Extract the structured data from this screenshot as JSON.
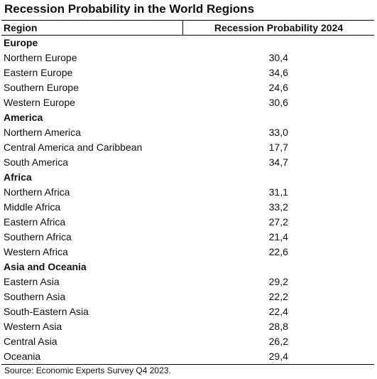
{
  "title": "Recession Probability in the World Regions",
  "table": {
    "headers": {
      "region": "Region",
      "probability": "Recession Probability 2024"
    },
    "rows": [
      {
        "type": "group",
        "label": "Europe",
        "value": ""
      },
      {
        "type": "item",
        "label": "Northern Europe",
        "value": "30,4"
      },
      {
        "type": "item",
        "label": "Eastern Europe",
        "value": "34,6"
      },
      {
        "type": "item",
        "label": "Southern Europe",
        "value": "24,6"
      },
      {
        "type": "item",
        "label": "Western Europe",
        "value": "30,6"
      },
      {
        "type": "group",
        "label": "America",
        "value": ""
      },
      {
        "type": "item",
        "label": "Northern America",
        "value": "33,0"
      },
      {
        "type": "item",
        "label": "Central America and Caribbean",
        "value": "17,7"
      },
      {
        "type": "item",
        "label": "South America",
        "value": "34,7"
      },
      {
        "type": "group",
        "label": "Africa",
        "value": ""
      },
      {
        "type": "item",
        "label": "Northern Africa",
        "value": "31,1"
      },
      {
        "type": "item",
        "label": "Middle Africa",
        "value": "33,2"
      },
      {
        "type": "item",
        "label": "Eastern Africa",
        "value": "27,2"
      },
      {
        "type": "item",
        "label": "Southern Africa",
        "value": "21,4"
      },
      {
        "type": "item",
        "label": "Western Africa",
        "value": "22,6"
      },
      {
        "type": "group",
        "label": "Asia and Oceania",
        "value": ""
      },
      {
        "type": "item",
        "label": "Eastern Asia",
        "value": "29,2"
      },
      {
        "type": "item",
        "label": "Southern Asia",
        "value": "22,2"
      },
      {
        "type": "item",
        "label": "South-Eastern Asia",
        "value": "22,4"
      },
      {
        "type": "item",
        "label": "Western Asia",
        "value": "28,8"
      },
      {
        "type": "item",
        "label": "Central Asia",
        "value": "26,2"
      },
      {
        "type": "item",
        "label": "Oceania",
        "value": "29,4"
      }
    ]
  },
  "source": "Source: Economic Experts Survey Q4 2023."
}
